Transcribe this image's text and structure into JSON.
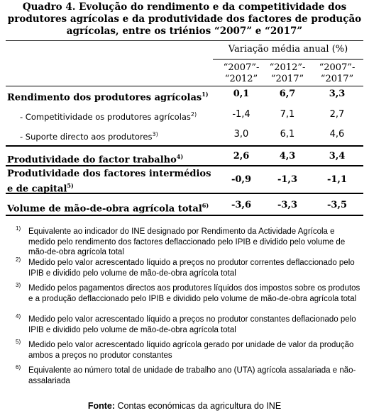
{
  "title": "Quadro 4. Evolução do rendimento e da competitividade dos produtores agrícolas e da produtividade dos factores de produção agrícolas, entre os triénios “2007” e “2017”",
  "table": {
    "group_header": "Variação média anual (%)",
    "columns": [
      [
        "“2007”-",
        "“2012”"
      ],
      [
        "“2012”-",
        "“2017”"
      ],
      [
        "“2007”-",
        "“2017”"
      ]
    ],
    "rows": [
      {
        "label": "Rendimento dos produtores agrícolas",
        "note": "1)",
        "values": [
          "0,1",
          "6,7",
          "3,3"
        ]
      },
      {
        "label": "- Competitividade os produtores agrícolas",
        "note": "2)",
        "values": [
          "-1,4",
          "7,1",
          "2,7"
        ]
      },
      {
        "label": "- Suporte directo aos produtores",
        "note": "3)",
        "values": [
          "3,0",
          "6,1",
          "4,6"
        ]
      },
      {
        "label": "Produtividade do factor trabalho",
        "note": "4)",
        "values": [
          "2,6",
          "4,3",
          "3,4"
        ]
      },
      {
        "label": "Produtividade dos factores intermédios e de capital",
        "note": "5)",
        "values": [
          "-0,9",
          "-1,3",
          "-1,1"
        ]
      },
      {
        "label": "Volume de mão-de-obra agrícola total",
        "note": "6)",
        "values": [
          "-3,6",
          "-3,3",
          "-3,5"
        ]
      }
    ]
  },
  "footnotes": [
    {
      "mark": "1)",
      "text": "Equivalente ao indicador do INE designado por Rendimento da Actividade Agrícola e medido pelo rendimento dos factores deflaccionado pelo IPIB e dividido pelo volume de mão-de-obra agrícola total"
    },
    {
      "mark": "2)",
      "text": "Medido pelo valor acrescentado líquido a preços no produtor correntes deflaccionado pelo IPIB e dividido pelo volume de mão-de-obra agrícola total"
    },
    {
      "mark": "3)",
      "text": "Medido pelos pagamentos directos aos produtores líquidos dos impostos sobre os produtos e a produção deflaccionado pelo IPIB e dividido pelo volume de mão-de-obra agrícola total"
    },
    {
      "mark": "4)",
      "text": "Medido pelo valor acrescentado líquido a preços no produtor constantes deflacionado pelo IPIB e dividido pelo volume de mão-de-obra agrícola total"
    },
    {
      "mark": "5)",
      "text": "Medido pelo valor acrescentado líquido agrícola gerado por unidade de valor da produção ambos a preços no produtor constantes"
    },
    {
      "mark": "6)",
      "text": "Equivalente ao número total de unidade de trabalho ano (UTA) agrícola assalariada e não-assalariada"
    }
  ],
  "source": {
    "label": "Fonte:",
    "text": "Contas económicas da agricultura do INE"
  }
}
